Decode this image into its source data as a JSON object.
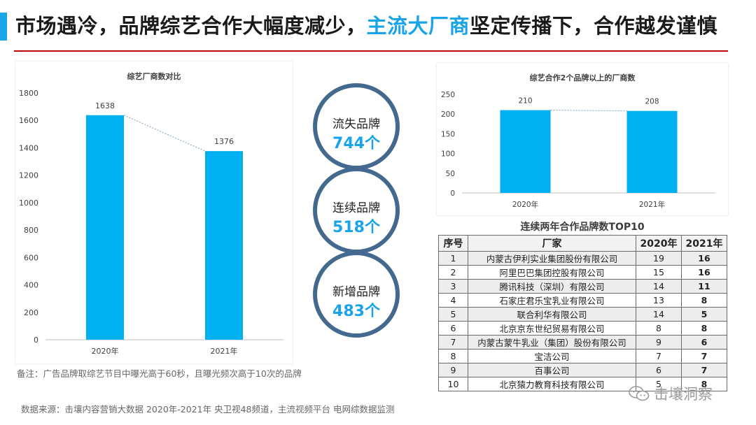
{
  "header": {
    "title_part1": "市场遇冷，品牌综艺合作大幅度减少，",
    "title_highlight": "主流大厂商",
    "title_part2": "坚定传播下，合作越发谨慎"
  },
  "chart_data": [
    {
      "type": "bar",
      "title": "综艺厂商数对比",
      "categories": [
        "2020年",
        "2021年"
      ],
      "values": [
        1638,
        1376
      ],
      "ylim": [
        0,
        1800
      ],
      "yticks": [
        0,
        200,
        400,
        600,
        800,
        1000,
        1200,
        1400,
        1600,
        1800
      ],
      "color": "#00b0f0",
      "grid": false,
      "trendline": "dotted"
    },
    {
      "type": "bar",
      "title": "综艺合作2个品牌以上的厂商数",
      "categories": [
        "2020年",
        "2021年"
      ],
      "values": [
        210,
        208
      ],
      "ylim": [
        0,
        250
      ],
      "yticks": [
        0,
        50,
        100,
        150,
        200,
        250
      ],
      "color": "#00b0f0",
      "grid": false,
      "trendline": "dotted"
    },
    {
      "type": "table",
      "title": "连续两年合作品牌数TOP10",
      "columns": [
        "序号",
        "厂家",
        "2020年",
        "2021年"
      ],
      "rows": [
        [
          "1",
          "内蒙古伊利实业集团股份有限公司",
          "19",
          "16"
        ],
        [
          "2",
          "阿里巴巴集团控股有限公司",
          "15",
          "16"
        ],
        [
          "3",
          "腾讯科技（深圳）有限公司",
          "14",
          "11"
        ],
        [
          "4",
          "石家庄君乐宝乳业有限公司",
          "13",
          "8"
        ],
        [
          "5",
          "联合利华有限公司",
          "14",
          "5"
        ],
        [
          "6",
          "北京京东世纪贸易有限公司",
          "8",
          "8"
        ],
        [
          "7",
          "内蒙古蒙牛乳业（集团）股份有限公司",
          "9",
          "6"
        ],
        [
          "8",
          "宝洁公司",
          "7",
          "7"
        ],
        [
          "9",
          "百事公司",
          "6",
          "7"
        ],
        [
          "10",
          "北京猿力教育科技有限公司",
          "5",
          "8"
        ]
      ]
    }
  ],
  "bubbles": [
    {
      "label": "流失品牌",
      "value": "744个"
    },
    {
      "label": "连续品牌",
      "value": "518个"
    },
    {
      "label": "新增品牌",
      "value": "483个"
    }
  ],
  "note": "备注：广告品牌取综艺节目中曝光高于60秒，且曝光频次高于10次的品牌",
  "source": "数据来源：击壤内容营销大数据 2020年-2021年  央卫视48频道，主流视频平台 电网综数据监测",
  "watermark": "击壤洞察",
  "colors": {
    "accent": "#19a4ea",
    "bar": "#00b0f0",
    "ring": "#44698f",
    "rule": "#c00000"
  }
}
